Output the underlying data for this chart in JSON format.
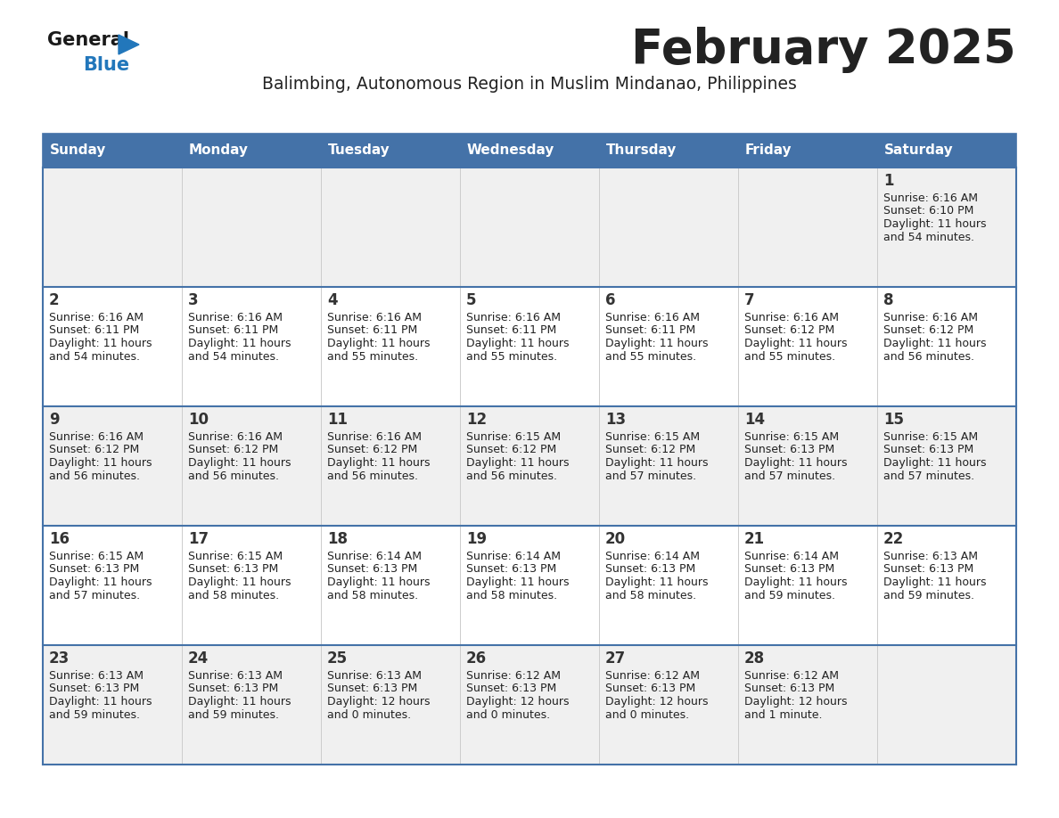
{
  "title": "February 2025",
  "subtitle": "Balimbing, Autonomous Region in Muslim Mindanao, Philippines",
  "header_bg": "#4472A8",
  "header_text": "#FFFFFF",
  "day_names": [
    "Sunday",
    "Monday",
    "Tuesday",
    "Wednesday",
    "Thursday",
    "Friday",
    "Saturday"
  ],
  "row_bg_odd": "#F0F0F0",
  "row_bg_even": "#FFFFFF",
  "border_color": "#4472A8",
  "text_color": "#222222",
  "num_color": "#333333",
  "logo_general_color": "#1a1a1a",
  "logo_blue_color": "#2277BB",
  "calendar": [
    [
      {
        "day": 0,
        "sunrise": "",
        "sunset": "",
        "daylight": ""
      },
      {
        "day": 0,
        "sunrise": "",
        "sunset": "",
        "daylight": ""
      },
      {
        "day": 0,
        "sunrise": "",
        "sunset": "",
        "daylight": ""
      },
      {
        "day": 0,
        "sunrise": "",
        "sunset": "",
        "daylight": ""
      },
      {
        "day": 0,
        "sunrise": "",
        "sunset": "",
        "daylight": ""
      },
      {
        "day": 0,
        "sunrise": "",
        "sunset": "",
        "daylight": ""
      },
      {
        "day": 1,
        "sunrise": "6:16 AM",
        "sunset": "6:10 PM",
        "daylight": "11 hours\nand 54 minutes."
      }
    ],
    [
      {
        "day": 2,
        "sunrise": "6:16 AM",
        "sunset": "6:11 PM",
        "daylight": "11 hours\nand 54 minutes."
      },
      {
        "day": 3,
        "sunrise": "6:16 AM",
        "sunset": "6:11 PM",
        "daylight": "11 hours\nand 54 minutes."
      },
      {
        "day": 4,
        "sunrise": "6:16 AM",
        "sunset": "6:11 PM",
        "daylight": "11 hours\nand 55 minutes."
      },
      {
        "day": 5,
        "sunrise": "6:16 AM",
        "sunset": "6:11 PM",
        "daylight": "11 hours\nand 55 minutes."
      },
      {
        "day": 6,
        "sunrise": "6:16 AM",
        "sunset": "6:11 PM",
        "daylight": "11 hours\nand 55 minutes."
      },
      {
        "day": 7,
        "sunrise": "6:16 AM",
        "sunset": "6:12 PM",
        "daylight": "11 hours\nand 55 minutes."
      },
      {
        "day": 8,
        "sunrise": "6:16 AM",
        "sunset": "6:12 PM",
        "daylight": "11 hours\nand 56 minutes."
      }
    ],
    [
      {
        "day": 9,
        "sunrise": "6:16 AM",
        "sunset": "6:12 PM",
        "daylight": "11 hours\nand 56 minutes."
      },
      {
        "day": 10,
        "sunrise": "6:16 AM",
        "sunset": "6:12 PM",
        "daylight": "11 hours\nand 56 minutes."
      },
      {
        "day": 11,
        "sunrise": "6:16 AM",
        "sunset": "6:12 PM",
        "daylight": "11 hours\nand 56 minutes."
      },
      {
        "day": 12,
        "sunrise": "6:15 AM",
        "sunset": "6:12 PM",
        "daylight": "11 hours\nand 56 minutes."
      },
      {
        "day": 13,
        "sunrise": "6:15 AM",
        "sunset": "6:12 PM",
        "daylight": "11 hours\nand 57 minutes."
      },
      {
        "day": 14,
        "sunrise": "6:15 AM",
        "sunset": "6:13 PM",
        "daylight": "11 hours\nand 57 minutes."
      },
      {
        "day": 15,
        "sunrise": "6:15 AM",
        "sunset": "6:13 PM",
        "daylight": "11 hours\nand 57 minutes."
      }
    ],
    [
      {
        "day": 16,
        "sunrise": "6:15 AM",
        "sunset": "6:13 PM",
        "daylight": "11 hours\nand 57 minutes."
      },
      {
        "day": 17,
        "sunrise": "6:15 AM",
        "sunset": "6:13 PM",
        "daylight": "11 hours\nand 58 minutes."
      },
      {
        "day": 18,
        "sunrise": "6:14 AM",
        "sunset": "6:13 PM",
        "daylight": "11 hours\nand 58 minutes."
      },
      {
        "day": 19,
        "sunrise": "6:14 AM",
        "sunset": "6:13 PM",
        "daylight": "11 hours\nand 58 minutes."
      },
      {
        "day": 20,
        "sunrise": "6:14 AM",
        "sunset": "6:13 PM",
        "daylight": "11 hours\nand 58 minutes."
      },
      {
        "day": 21,
        "sunrise": "6:14 AM",
        "sunset": "6:13 PM",
        "daylight": "11 hours\nand 59 minutes."
      },
      {
        "day": 22,
        "sunrise": "6:13 AM",
        "sunset": "6:13 PM",
        "daylight": "11 hours\nand 59 minutes."
      }
    ],
    [
      {
        "day": 23,
        "sunrise": "6:13 AM",
        "sunset": "6:13 PM",
        "daylight": "11 hours\nand 59 minutes."
      },
      {
        "day": 24,
        "sunrise": "6:13 AM",
        "sunset": "6:13 PM",
        "daylight": "11 hours\nand 59 minutes."
      },
      {
        "day": 25,
        "sunrise": "6:13 AM",
        "sunset": "6:13 PM",
        "daylight": "12 hours\nand 0 minutes."
      },
      {
        "day": 26,
        "sunrise": "6:12 AM",
        "sunset": "6:13 PM",
        "daylight": "12 hours\nand 0 minutes."
      },
      {
        "day": 27,
        "sunrise": "6:12 AM",
        "sunset": "6:13 PM",
        "daylight": "12 hours\nand 0 minutes."
      },
      {
        "day": 28,
        "sunrise": "6:12 AM",
        "sunset": "6:13 PM",
        "daylight": "12 hours\nand 1 minute."
      },
      {
        "day": 0,
        "sunrise": "",
        "sunset": "",
        "daylight": ""
      }
    ]
  ]
}
